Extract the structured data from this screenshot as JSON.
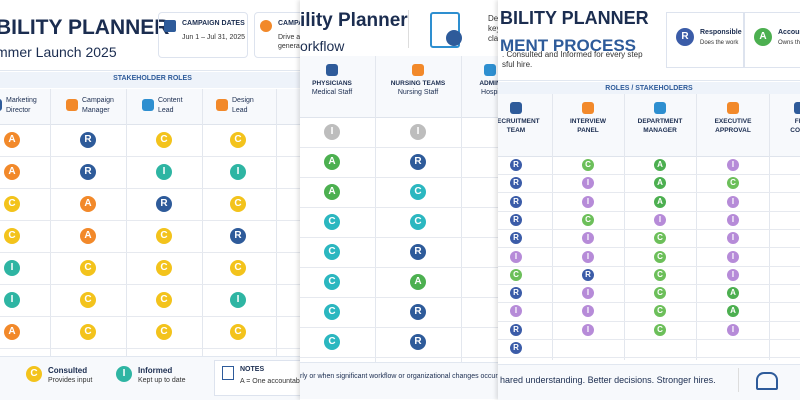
{
  "panels": [
    {
      "title": "BILITY PLANNER",
      "subtitle": "mmer Launch 2025",
      "info": [
        {
          "label": "CAMPAIGN DATES",
          "lines": [
            "Jun 1 – Jul 31, 2025"
          ]
        },
        {
          "label": "CAMPA",
          "lines": [
            "Drive aw",
            "generate"
          ]
        }
      ],
      "section": "STAKEHOLDER ROLES",
      "columns": [
        [
          "Marketing",
          "Director"
        ],
        [
          "Campaign",
          "Manager"
        ],
        [
          "Content",
          "Lead"
        ],
        [
          "Design",
          "Lead"
        ]
      ],
      "rows": [
        [
          "A",
          "R",
          "C",
          "C"
        ],
        [
          "A",
          "R",
          "I",
          "I"
        ],
        [
          "C",
          "A",
          "R",
          "C"
        ],
        [
          "C",
          "A",
          "C",
          "R"
        ],
        [
          "I",
          "C",
          "C",
          "C"
        ],
        [
          "I",
          "C",
          "C",
          "I"
        ],
        [
          "A",
          "C",
          "C",
          "C"
        ]
      ],
      "legend": [
        {
          "letter": "C",
          "name": "Consulted",
          "desc": "Provides input"
        },
        {
          "letter": "I",
          "name": "Informed",
          "desc": "Kept up to date"
        }
      ],
      "notes": {
        "title": "NOTES",
        "text": "A = One accountable p"
      }
    },
    {
      "title": "ility Planner",
      "subtitle": "orkflow",
      "intro": [
        "Define r",
        "key hea",
        "clarity, a"
      ],
      "columns": [
        [
          "PHYSICIANS",
          "Medical Staff"
        ],
        [
          "NURSING TEAMS",
          "Nursing Staff"
        ],
        [
          "ADMIN",
          "Hospi"
        ]
      ],
      "rows": [
        [
          "I",
          "I"
        ],
        [
          "A",
          "R"
        ],
        [
          "A",
          "C"
        ],
        [
          "C",
          "C"
        ],
        [
          "C",
          "R"
        ],
        [
          "C",
          "A"
        ],
        [
          "C",
          "R"
        ],
        [
          "C",
          "R"
        ]
      ],
      "footer": "rly or when significant workflow or organizational changes occur."
    },
    {
      "title": "BILITY PLANNER",
      "subtitle": "MENT PROCESS",
      "intro": [
        ". Consulted and Informed for every step",
        "sful hire."
      ],
      "legend": [
        {
          "letter": "R",
          "name": "Responsible",
          "desc": "Does the work"
        },
        {
          "letter": "A",
          "name": "Accounta",
          "desc": "Owns the"
        }
      ],
      "section": "ROLES / STAKEHOLDERS",
      "columns": [
        [
          "RECRUITMENT",
          "TEAM"
        ],
        [
          "INTERVIEW",
          "PANEL"
        ],
        [
          "DEPARTMENT",
          "MANAGER"
        ],
        [
          "EXECUTIVE",
          "APPROVAL"
        ],
        [
          "FIN",
          "COMP"
        ]
      ],
      "rows": [
        [
          "R",
          "C",
          "A",
          "I"
        ],
        [
          "R",
          "I",
          "A",
          "C"
        ],
        [
          "R",
          "I",
          "A",
          "I"
        ],
        [
          "R",
          "C",
          "I",
          "I"
        ],
        [
          "R",
          "I",
          "C",
          "I"
        ],
        [
          "I",
          "I",
          "C",
          "I"
        ],
        [
          "C",
          "R",
          "C",
          "I"
        ],
        [
          "R",
          "I",
          "C",
          "A"
        ],
        [
          "I",
          "I",
          "C",
          "A"
        ],
        [
          "R",
          "I",
          "C",
          "I"
        ],
        [
          "R"
        ]
      ],
      "footer": "hared understanding. Better decisions.   Stronger hires."
    }
  ]
}
